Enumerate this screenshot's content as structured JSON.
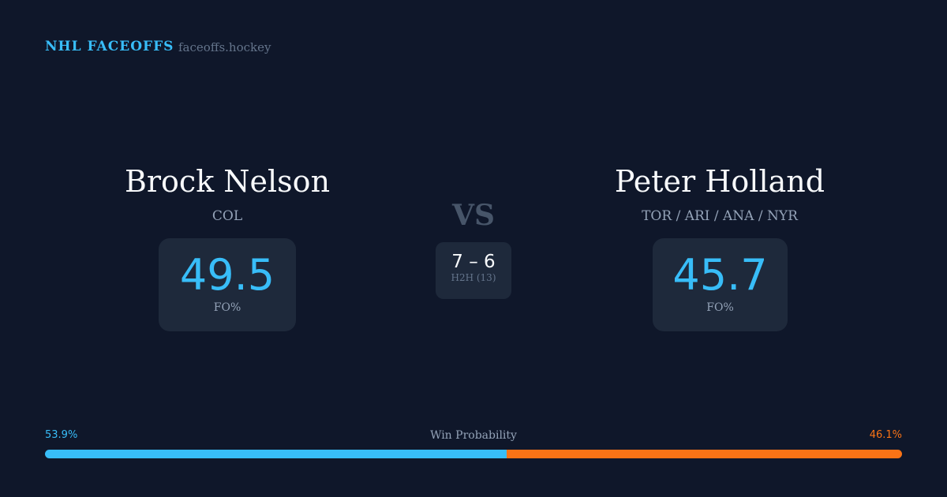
{
  "header": {
    "brand": "NHL FACEOFFS",
    "site": "faceoffs.hockey"
  },
  "player1": {
    "name": "Brock Nelson",
    "team": "COL",
    "fo_pct": "49.5",
    "fo_label": "FO%",
    "win_prob": "53.9%"
  },
  "player2": {
    "name": "Peter Holland",
    "team": "TOR / ARI / ANA / NYR",
    "fo_pct": "45.7",
    "fo_label": "FO%",
    "win_prob": "46.1%"
  },
  "vs": "VS",
  "h2h": {
    "score": "7 – 6",
    "label": "H2H (13)"
  },
  "win_probability": {
    "label": "Win Probability",
    "p1_fraction": 0.539,
    "p2_fraction": 0.461
  },
  "colors": {
    "p1": "#38bdf8",
    "p2": "#f97316",
    "bg": "#0f172a"
  }
}
